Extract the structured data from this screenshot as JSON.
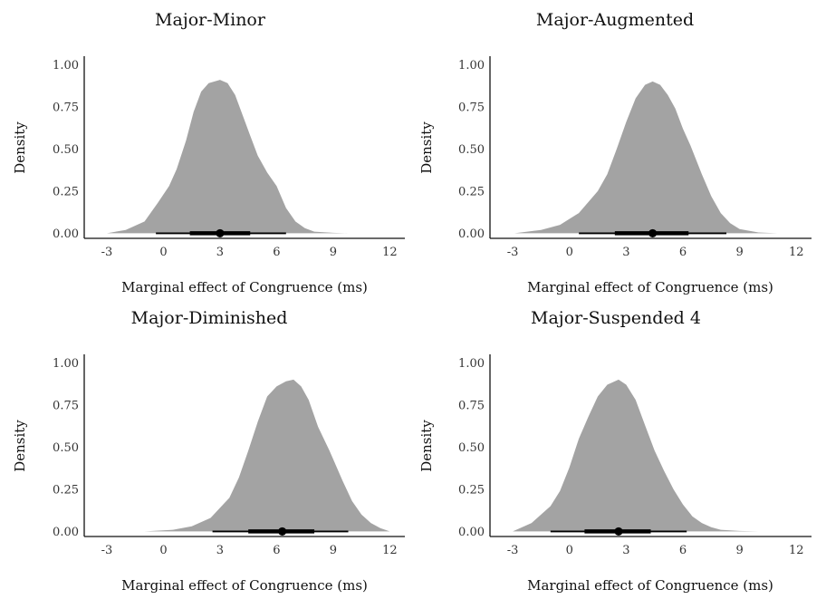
{
  "chart_data": [
    {
      "type": "area",
      "title": "Major-Minor",
      "xlabel": "Marginal effect of Congruence (ms)",
      "ylabel": "Density",
      "xlim": [
        -4.2,
        12.8
      ],
      "ylim": [
        -0.03,
        1.05
      ],
      "x_ticks": [
        -3,
        0,
        3,
        6,
        9,
        12
      ],
      "x_tick_labels": [
        "-3",
        "0",
        "3",
        "6",
        "9",
        "12"
      ],
      "y_ticks": [
        0,
        0.25,
        0.5,
        0.75,
        1.0
      ],
      "y_tick_labels": [
        "0.00",
        "0.25",
        "0.50",
        "0.75",
        "1.00"
      ],
      "density": {
        "x": [
          -3.0,
          -2.0,
          -1.0,
          -0.3,
          0.3,
          0.7,
          1.2,
          1.6,
          2.0,
          2.4,
          3.0,
          3.4,
          3.8,
          4.2,
          4.6,
          5.0,
          5.5,
          6.0,
          6.5,
          7.0,
          7.5,
          8.0,
          9.0,
          9.8
        ],
        "y": [
          0.0,
          0.02,
          0.07,
          0.18,
          0.28,
          0.38,
          0.55,
          0.72,
          0.84,
          0.89,
          0.91,
          0.89,
          0.82,
          0.7,
          0.58,
          0.46,
          0.36,
          0.28,
          0.15,
          0.07,
          0.03,
          0.01,
          0.003,
          0.0
        ]
      },
      "point": 3.0,
      "interval_inner": [
        1.4,
        4.6
      ],
      "interval_outer": [
        -0.4,
        6.5
      ]
    },
    {
      "type": "area",
      "title": "Major-Augmented",
      "xlabel": "Marginal effect of Congruence (ms)",
      "ylabel": "Density",
      "xlim": [
        -4.2,
        12.8
      ],
      "ylim": [
        -0.03,
        1.05
      ],
      "x_ticks": [
        -3,
        0,
        3,
        6,
        9,
        12
      ],
      "x_tick_labels": [
        "-3",
        "0",
        "3",
        "6",
        "9",
        "12"
      ],
      "y_ticks": [
        0,
        0.25,
        0.5,
        0.75,
        1.0
      ],
      "y_tick_labels": [
        "0.00",
        "0.25",
        "0.50",
        "0.75",
        "1.00"
      ],
      "density": {
        "x": [
          -2.9,
          -1.5,
          -0.5,
          0.5,
          1.5,
          2.0,
          2.5,
          3.0,
          3.5,
          4.0,
          4.4,
          4.8,
          5.2,
          5.6,
          6.0,
          6.4,
          7.0,
          7.5,
          8.0,
          8.5,
          9.0,
          10.0,
          11.0
        ],
        "y": [
          0.0,
          0.02,
          0.05,
          0.12,
          0.25,
          0.35,
          0.5,
          0.66,
          0.8,
          0.88,
          0.9,
          0.88,
          0.82,
          0.74,
          0.62,
          0.52,
          0.35,
          0.22,
          0.12,
          0.06,
          0.025,
          0.005,
          0.0
        ]
      },
      "point": 4.4,
      "interval_inner": [
        2.4,
        6.3
      ],
      "interval_outer": [
        0.5,
        8.3
      ]
    },
    {
      "type": "area",
      "title": "Major-Diminished",
      "xlabel": "Marginal effect of Congruence (ms)",
      "ylabel": "Density",
      "xlim": [
        -4.2,
        12.8
      ],
      "ylim": [
        -0.03,
        1.05
      ],
      "x_ticks": [
        -3,
        0,
        3,
        6,
        9,
        12
      ],
      "x_tick_labels": [
        "-3",
        "0",
        "3",
        "6",
        "9",
        "12"
      ],
      "y_ticks": [
        0,
        0.25,
        0.5,
        0.75,
        1.0
      ],
      "y_tick_labels": [
        "0.00",
        "0.25",
        "0.50",
        "0.75",
        "1.00"
      ],
      "density": {
        "x": [
          -1.0,
          0.5,
          1.5,
          2.5,
          3.5,
          4.0,
          4.5,
          5.0,
          5.5,
          6.0,
          6.5,
          6.9,
          7.3,
          7.7,
          8.2,
          8.8,
          9.5,
          10.0,
          10.5,
          11.0,
          11.5,
          12.0
        ],
        "y": [
          0.0,
          0.01,
          0.03,
          0.08,
          0.2,
          0.32,
          0.48,
          0.65,
          0.8,
          0.86,
          0.89,
          0.9,
          0.86,
          0.78,
          0.62,
          0.48,
          0.3,
          0.18,
          0.1,
          0.05,
          0.02,
          0.0
        ]
      },
      "point": 6.3,
      "interval_inner": [
        4.5,
        8.0
      ],
      "interval_outer": [
        2.6,
        9.8
      ]
    },
    {
      "type": "area",
      "title": "Major-Suspended 4",
      "xlabel": "Marginal effect of Congruence (ms)",
      "ylabel": "Density",
      "xlim": [
        -4.2,
        12.8
      ],
      "ylim": [
        -0.03,
        1.05
      ],
      "x_ticks": [
        -3,
        0,
        3,
        6,
        9,
        12
      ],
      "x_tick_labels": [
        "-3",
        "0",
        "3",
        "6",
        "9",
        "12"
      ],
      "y_ticks": [
        0,
        0.25,
        0.5,
        0.75,
        1.0
      ],
      "y_tick_labels": [
        "0.00",
        "0.25",
        "0.50",
        "0.75",
        "1.00"
      ],
      "density": {
        "x": [
          -3.0,
          -2.0,
          -1.0,
          -0.5,
          0.0,
          0.5,
          1.0,
          1.5,
          2.0,
          2.6,
          3.0,
          3.5,
          4.0,
          4.5,
          5.0,
          5.5,
          6.0,
          6.5,
          7.0,
          7.5,
          8.0,
          9.0,
          10.0
        ],
        "y": [
          0.0,
          0.05,
          0.15,
          0.24,
          0.38,
          0.55,
          0.68,
          0.8,
          0.87,
          0.9,
          0.87,
          0.78,
          0.63,
          0.48,
          0.36,
          0.25,
          0.16,
          0.09,
          0.05,
          0.025,
          0.01,
          0.003,
          0.0
        ]
      },
      "point": 2.6,
      "interval_inner": [
        0.8,
        4.3
      ],
      "interval_outer": [
        -1.0,
        6.2
      ]
    }
  ],
  "colors": {
    "density_fill": "#a3a3a3",
    "interval": "#000000",
    "axis": "#111111"
  }
}
